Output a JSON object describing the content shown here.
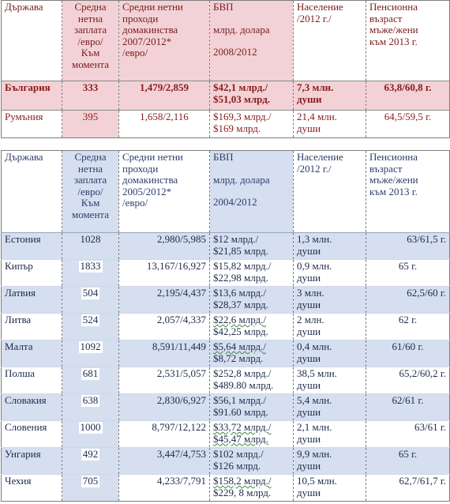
{
  "table1": {
    "headers": {
      "country": "Държава",
      "salary": [
        "Средна",
        "нетна",
        "заплата",
        "/евро/",
        "Към",
        "момента"
      ],
      "income": [
        "Средни нетни",
        "проходи",
        "домакинства",
        "2007/2012*",
        "/евро/"
      ],
      "gdp": [
        "БВП",
        "млрд. долара",
        "2008/2012"
      ],
      "population": [
        "Население",
        "/2012 г./"
      ],
      "pension": [
        "Пенсионна",
        "възраст",
        "мъже/жени",
        "към 2013 г."
      ]
    },
    "rows": [
      {
        "country": "България",
        "salary": "333",
        "income": "1,479/2,859",
        "gdp": [
          "$42,1 млрд./",
          "$51,03 млрд."
        ],
        "population": [
          "7,3 млн.",
          "души"
        ],
        "pension": "63,8/60,8 г."
      },
      {
        "country": "Румъния",
        "salary": "395",
        "income": "1,658/2,116",
        "gdp": [
          "$169,3 млрд./",
          "$169 млрд."
        ],
        "population": [
          "21,4 млн.",
          "души"
        ],
        "pension": "64,5/59,5 г."
      }
    ]
  },
  "table2": {
    "headers": {
      "country": "Държава",
      "salary": [
        "Средна",
        "нетна",
        "заплата",
        "/евро/",
        "Към",
        "момента"
      ],
      "income": [
        "Средни нетни",
        "проходи",
        "домакинства",
        "2005/2012*",
        "/евро/"
      ],
      "gdp": [
        "БВП",
        "млрд. долара",
        "2004/2012"
      ],
      "population": [
        "Население",
        "/2012 г./"
      ],
      "pension": [
        "Пенсионна",
        "възраст",
        "мъже/жени",
        "към 2013 г."
      ]
    },
    "rows": [
      {
        "country": "Естония",
        "salary": "1028",
        "income": "2,980/5,985",
        "gdp": [
          "$12 млрд./",
          "$21,85 млрд."
        ],
        "population": [
          "1,3 млн.",
          "души"
        ],
        "pension": "63/61,5 г."
      },
      {
        "country": "Кипър",
        "salary": "1833",
        "income": "13,167/16,927",
        "gdp": [
          "$15,82 млрд./",
          "$22,98 млрд."
        ],
        "population": [
          "0,9 млн.",
          "души"
        ],
        "pension": "65 г."
      },
      {
        "country": "Латвия",
        "salary": "504",
        "income": "2,195/4,437",
        "gdp": [
          "$13,6 млрд./",
          "$28,37 млрд."
        ],
        "population": [
          "3 млн.",
          "души"
        ],
        "pension": "62,5/60 г."
      },
      {
        "country": "Литва",
        "salary": "524",
        "income": "2,057/4,337",
        "gdp": [
          "$22,6 млрд./",
          "$42,25 млрд."
        ],
        "population": [
          "2 млн.",
          "души"
        ],
        "pension": "62 г."
      },
      {
        "country": "Малта",
        "salary": "1092",
        "income": "8,591/11,449",
        "gdp": [
          "$5,64 млрд./",
          "$8,72 млрд."
        ],
        "population": [
          "0,4 млн.",
          "души"
        ],
        "pension": "61/60 г."
      },
      {
        "country": "Полша",
        "salary": "681",
        "income": "2,531/5,057",
        "gdp": [
          "$252,8 млрд./",
          "$489.80 млрд."
        ],
        "population": [
          "38,5 млн.",
          "души"
        ],
        "pension": "65,2/60,2 г."
      },
      {
        "country": "Словакия",
        "salary": "638",
        "income": "2,830/6,927",
        "gdp": [
          "$56,1 млрд./",
          "$91.60 млрд."
        ],
        "population": [
          "5,4 млн.",
          "души"
        ],
        "pension": "62/61 г."
      },
      {
        "country": "Словения",
        "salary": "1000",
        "income": "8,797/12,122",
        "gdp": [
          "$33,72 млрд./",
          "$45,47 млрд."
        ],
        "population": [
          "2,1 млн.",
          "души"
        ],
        "pension": "63/61 г."
      },
      {
        "country": "Унгария",
        "salary": "492",
        "income": "3,447/4,753",
        "gdp": [
          "$102 млрд./",
          "$126 млрд."
        ],
        "population": [
          "9,9 млн.",
          "души"
        ],
        "pension": "65 г."
      },
      {
        "country": "Чехия",
        "salary": "705",
        "income": "4,233/7,791",
        "gdp": [
          "$158,2 млрд./",
          "$229, 8 млрд."
        ],
        "population": [
          "10,5 млн.",
          "души"
        ],
        "pension": "62,7/61,7 г."
      }
    ]
  },
  "colors": {
    "pink_highlight": "#f2d2d6",
    "blue_highlight": "#d6dff0",
    "header_text_red": "#7a1c1c",
    "header_text_blue": "#2c3e6b"
  }
}
